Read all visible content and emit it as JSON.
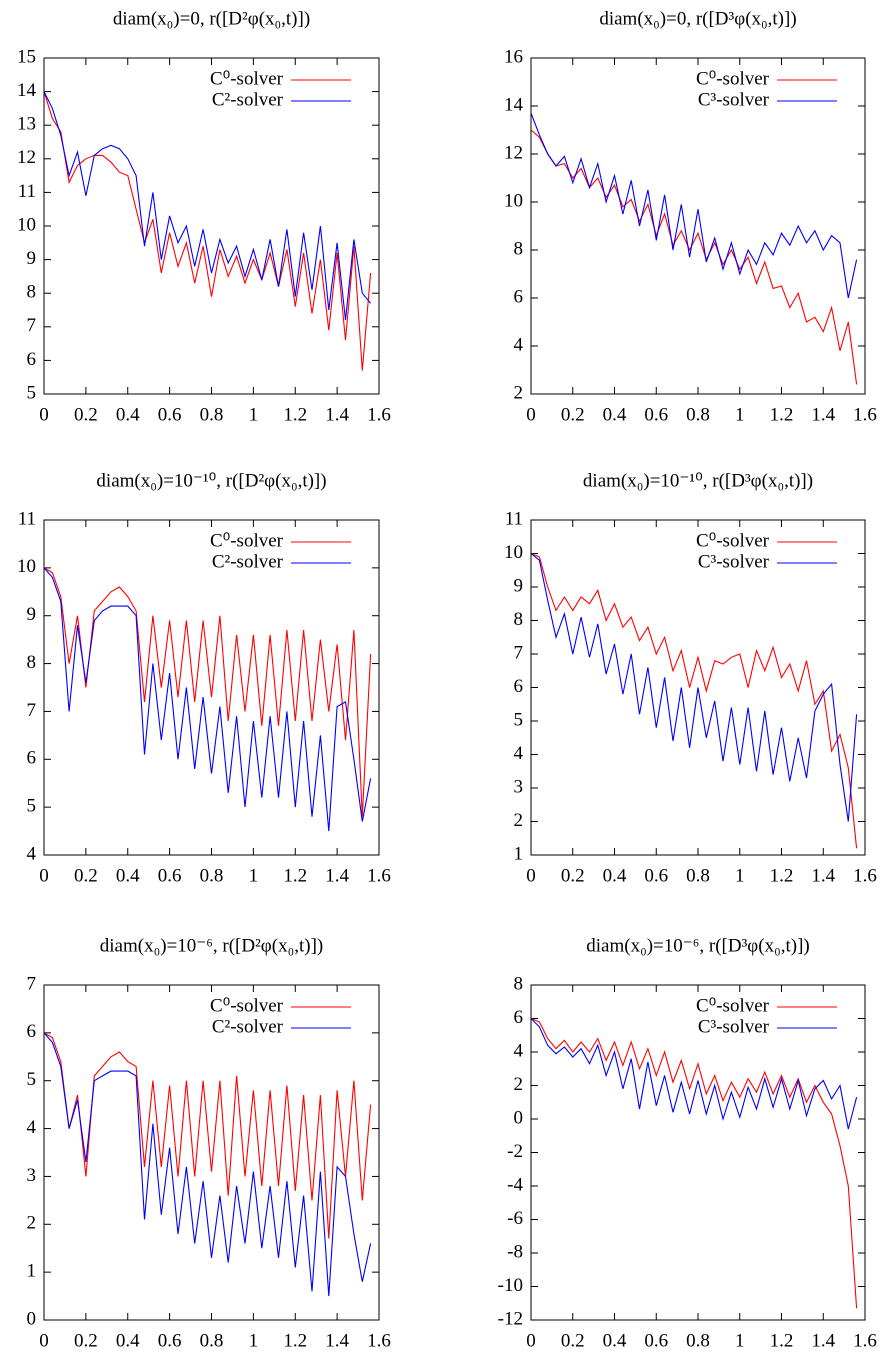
{
  "chart_data": [
    {
      "type": "line",
      "title": "diam(x₀)=0, r([D²φ(x₀,t)])",
      "legend": "top right",
      "x": [
        0,
        0.04,
        0.08,
        0.12,
        0.16,
        0.2,
        0.24,
        0.28,
        0.32,
        0.36,
        0.4,
        0.44,
        0.48,
        0.52,
        0.56,
        0.6,
        0.64,
        0.68,
        0.72,
        0.76,
        0.8,
        0.84,
        0.88,
        0.92,
        0.96,
        1.0,
        1.04,
        1.08,
        1.12,
        1.16,
        1.2,
        1.24,
        1.28,
        1.32,
        1.36,
        1.4,
        1.44,
        1.48,
        1.52,
        1.56
      ],
      "series": [
        {
          "name": "C⁰-solver",
          "color": "#ff0000",
          "values": [
            14,
            13.2,
            12.8,
            11.3,
            11.8,
            12.0,
            12.1,
            12.1,
            11.9,
            11.6,
            11.5,
            10.5,
            9.5,
            10.2,
            8.6,
            9.8,
            8.8,
            9.5,
            8.3,
            9.4,
            7.9,
            9.3,
            8.5,
            9.1,
            8.3,
            9.0,
            8.4,
            9.2,
            8.2,
            9.3,
            7.6,
            9.2,
            7.4,
            9.0,
            6.9,
            9.2,
            6.6,
            9.4,
            5.7,
            8.6
          ]
        },
        {
          "name": "C²-solver",
          "color": "#0000ff",
          "values": [
            14,
            13.5,
            12.7,
            11.5,
            12.2,
            10.9,
            12.1,
            12.3,
            12.4,
            12.3,
            12.0,
            11.5,
            9.4,
            11.0,
            9.0,
            10.3,
            9.5,
            10.0,
            8.8,
            9.9,
            8.6,
            9.6,
            8.9,
            9.4,
            8.5,
            9.3,
            8.4,
            9.6,
            8.2,
            9.9,
            7.9,
            9.8,
            8.1,
            10.0,
            7.5,
            9.5,
            7.2,
            9.6,
            8.0,
            7.7
          ]
        }
      ],
      "xlim": [
        0,
        1.6
      ],
      "xticks": [
        0,
        0.2,
        0.4,
        0.6,
        0.8,
        1,
        1.2,
        1.4,
        1.6
      ],
      "ylim": [
        5,
        15
      ],
      "yticks": [
        5,
        6,
        7,
        8,
        9,
        10,
        11,
        12,
        13,
        14,
        15
      ]
    },
    {
      "type": "line",
      "title": "diam(x₀)=0, r([D³φ(x₀,t)])",
      "legend": "top right",
      "x": [
        0,
        0.04,
        0.08,
        0.12,
        0.16,
        0.2,
        0.24,
        0.28,
        0.32,
        0.36,
        0.4,
        0.44,
        0.48,
        0.52,
        0.56,
        0.6,
        0.64,
        0.68,
        0.72,
        0.76,
        0.8,
        0.84,
        0.88,
        0.92,
        0.96,
        1.0,
        1.04,
        1.08,
        1.12,
        1.16,
        1.2,
        1.24,
        1.28,
        1.32,
        1.36,
        1.4,
        1.44,
        1.48,
        1.52,
        1.56
      ],
      "series": [
        {
          "name": "C⁰-solver",
          "color": "#ff0000",
          "values": [
            13,
            12.7,
            12.0,
            11.5,
            11.6,
            11.0,
            11.4,
            10.6,
            11.0,
            10.2,
            10.7,
            9.8,
            10.1,
            9.2,
            9.9,
            8.6,
            9.5,
            8.2,
            8.8,
            8.0,
            8.7,
            7.6,
            8.3,
            7.4,
            8.0,
            7.2,
            7.7,
            6.6,
            7.5,
            6.4,
            6.5,
            5.6,
            6.2,
            5.0,
            5.2,
            4.6,
            5.6,
            3.8,
            5.0,
            2.4
          ]
        },
        {
          "name": "C³-solver",
          "color": "#0000ff",
          "values": [
            13.7,
            12.8,
            12.0,
            11.5,
            11.9,
            10.8,
            11.8,
            10.6,
            11.6,
            10.0,
            11.1,
            9.5,
            10.9,
            9.0,
            10.5,
            8.4,
            10.3,
            8.0,
            9.9,
            7.7,
            9.7,
            7.5,
            8.5,
            7.2,
            8.3,
            7.0,
            8.0,
            7.4,
            8.3,
            7.8,
            8.7,
            8.2,
            9.0,
            8.3,
            8.8,
            8.0,
            8.6,
            8.3,
            6.0,
            7.6
          ]
        }
      ],
      "xlim": [
        0,
        1.6
      ],
      "xticks": [
        0,
        0.2,
        0.4,
        0.6,
        0.8,
        1,
        1.2,
        1.4,
        1.6
      ],
      "ylim": [
        2,
        16
      ],
      "yticks": [
        2,
        4,
        6,
        8,
        10,
        12,
        14,
        16
      ]
    },
    {
      "type": "line",
      "title": "diam(x₀)=10⁻¹⁰, r([D²φ(x₀,t)])",
      "legend": "top right",
      "x": [
        0,
        0.04,
        0.08,
        0.12,
        0.16,
        0.2,
        0.24,
        0.28,
        0.32,
        0.36,
        0.4,
        0.44,
        0.48,
        0.52,
        0.56,
        0.6,
        0.64,
        0.68,
        0.72,
        0.76,
        0.8,
        0.84,
        0.88,
        0.92,
        0.96,
        1.0,
        1.04,
        1.08,
        1.12,
        1.16,
        1.2,
        1.24,
        1.28,
        1.32,
        1.36,
        1.4,
        1.44,
        1.48,
        1.52,
        1.56
      ],
      "series": [
        {
          "name": "C⁰-solver",
          "color": "#ff0000",
          "values": [
            10,
            9.9,
            9.4,
            8.0,
            9.0,
            7.5,
            9.1,
            9.3,
            9.5,
            9.6,
            9.4,
            9.1,
            7.2,
            9.0,
            7.5,
            8.9,
            7.3,
            8.9,
            7.2,
            8.9,
            7.3,
            9.0,
            6.8,
            8.6,
            7.0,
            8.6,
            6.7,
            8.6,
            6.7,
            8.7,
            6.8,
            8.7,
            6.8,
            8.5,
            7.0,
            8.4,
            6.4,
            8.7,
            4.8,
            8.2
          ]
        },
        {
          "name": "C²-solver",
          "color": "#0000ff",
          "values": [
            10,
            9.8,
            9.3,
            7.0,
            8.8,
            7.6,
            8.9,
            9.1,
            9.2,
            9.2,
            9.2,
            9.0,
            6.1,
            8.0,
            6.4,
            7.8,
            6.0,
            7.5,
            5.8,
            7.3,
            5.7,
            7.1,
            5.3,
            6.9,
            5.0,
            6.8,
            5.2,
            6.9,
            5.2,
            7.0,
            5.0,
            6.8,
            4.8,
            6.5,
            4.5,
            7.1,
            7.2,
            6.0,
            4.7,
            5.6
          ]
        }
      ],
      "xlim": [
        0,
        1.6
      ],
      "xticks": [
        0,
        0.2,
        0.4,
        0.6,
        0.8,
        1,
        1.2,
        1.4,
        1.6
      ],
      "ylim": [
        4,
        11
      ],
      "yticks": [
        4,
        5,
        6,
        7,
        8,
        9,
        10,
        11
      ]
    },
    {
      "type": "line",
      "title": "diam(x₀)=10⁻¹⁰, r([D³φ(x₀,t)])",
      "legend": "top right",
      "x": [
        0,
        0.04,
        0.08,
        0.12,
        0.16,
        0.2,
        0.24,
        0.28,
        0.32,
        0.36,
        0.4,
        0.44,
        0.48,
        0.52,
        0.56,
        0.6,
        0.64,
        0.68,
        0.72,
        0.76,
        0.8,
        0.84,
        0.88,
        0.92,
        0.96,
        1.0,
        1.04,
        1.08,
        1.12,
        1.16,
        1.2,
        1.24,
        1.28,
        1.32,
        1.36,
        1.4,
        1.44,
        1.48,
        1.52,
        1.56
      ],
      "series": [
        {
          "name": "C⁰-solver",
          "color": "#ff0000",
          "values": [
            10,
            9.9,
            9.0,
            8.3,
            8.7,
            8.3,
            8.7,
            8.5,
            8.9,
            8.0,
            8.5,
            7.8,
            8.1,
            7.4,
            7.8,
            7.0,
            7.5,
            6.5,
            7.1,
            6.0,
            6.9,
            5.9,
            6.8,
            6.7,
            6.9,
            7.0,
            6.0,
            7.1,
            6.5,
            7.2,
            6.3,
            6.7,
            5.9,
            6.8,
            5.5,
            5.9,
            4.1,
            4.6,
            3.6,
            1.2
          ]
        },
        {
          "name": "C³-solver",
          "color": "#0000ff",
          "values": [
            10,
            9.8,
            8.6,
            7.5,
            8.2,
            7.0,
            8.1,
            6.9,
            7.9,
            6.4,
            7.3,
            5.8,
            7.0,
            5.2,
            6.6,
            4.8,
            6.3,
            4.4,
            6.0,
            4.2,
            6.0,
            4.5,
            5.6,
            3.8,
            5.4,
            3.7,
            5.4,
            3.5,
            5.3,
            3.4,
            4.8,
            3.2,
            4.5,
            3.3,
            5.3,
            5.8,
            6.1,
            3.7,
            2.0,
            5.2
          ]
        }
      ],
      "xlim": [
        0,
        1.6
      ],
      "xticks": [
        0,
        0.2,
        0.4,
        0.6,
        0.8,
        1,
        1.2,
        1.4,
        1.6
      ],
      "ylim": [
        1,
        11
      ],
      "yticks": [
        1,
        2,
        3,
        4,
        5,
        6,
        7,
        8,
        9,
        10,
        11
      ]
    },
    {
      "type": "line",
      "title": "diam(x₀)=10⁻⁶, r([D²φ(x₀,t)])",
      "legend": "top right",
      "x": [
        0,
        0.04,
        0.08,
        0.12,
        0.16,
        0.2,
        0.24,
        0.28,
        0.32,
        0.36,
        0.4,
        0.44,
        0.48,
        0.52,
        0.56,
        0.6,
        0.64,
        0.68,
        0.72,
        0.76,
        0.8,
        0.84,
        0.88,
        0.92,
        0.96,
        1.0,
        1.04,
        1.08,
        1.12,
        1.16,
        1.2,
        1.24,
        1.28,
        1.32,
        1.36,
        1.4,
        1.44,
        1.48,
        1.52,
        1.56
      ],
      "series": [
        {
          "name": "C⁰-solver",
          "color": "#ff0000",
          "values": [
            6,
            5.9,
            5.4,
            4.0,
            4.7,
            3.0,
            5.1,
            5.3,
            5.5,
            5.6,
            5.4,
            5.3,
            3.2,
            5.0,
            3.2,
            4.9,
            3.0,
            5.0,
            3.0,
            5.0,
            3.1,
            5.0,
            2.6,
            5.1,
            3.0,
            4.8,
            2.8,
            4.8,
            2.8,
            4.9,
            2.7,
            4.7,
            2.5,
            4.7,
            1.7,
            4.8,
            3.0,
            5.0,
            2.5,
            4.5
          ]
        },
        {
          "name": "C²-solver",
          "color": "#0000ff",
          "values": [
            6,
            5.8,
            5.3,
            4.0,
            4.6,
            3.3,
            5.0,
            5.1,
            5.2,
            5.2,
            5.2,
            5.1,
            2.1,
            4.1,
            2.2,
            3.6,
            1.8,
            3.2,
            1.6,
            2.9,
            1.3,
            2.6,
            1.2,
            2.8,
            1.6,
            3.1,
            1.5,
            2.8,
            1.3,
            2.9,
            1.1,
            2.6,
            0.6,
            3.1,
            0.5,
            3.2,
            3.0,
            1.8,
            0.8,
            1.6
          ]
        }
      ],
      "xlim": [
        0,
        1.6
      ],
      "xticks": [
        0,
        0.2,
        0.4,
        0.6,
        0.8,
        1,
        1.2,
        1.4,
        1.6
      ],
      "ylim": [
        0,
        7
      ],
      "yticks": [
        0,
        1,
        2,
        3,
        4,
        5,
        6,
        7
      ]
    },
    {
      "type": "line",
      "title": "diam(x₀)=10⁻⁶, r([D³φ(x₀,t)])",
      "legend": "top right",
      "x": [
        0,
        0.04,
        0.08,
        0.12,
        0.16,
        0.2,
        0.24,
        0.28,
        0.32,
        0.36,
        0.4,
        0.44,
        0.48,
        0.52,
        0.56,
        0.6,
        0.64,
        0.68,
        0.72,
        0.76,
        0.8,
        0.84,
        0.88,
        0.92,
        0.96,
        1.0,
        1.04,
        1.08,
        1.12,
        1.16,
        1.2,
        1.24,
        1.28,
        1.32,
        1.36,
        1.4,
        1.44,
        1.48,
        1.52,
        1.56
      ],
      "series": [
        {
          "name": "C⁰-solver",
          "color": "#ff0000",
          "values": [
            6,
            5.8,
            4.8,
            4.2,
            4.7,
            4.0,
            4.6,
            4.0,
            4.8,
            3.5,
            4.6,
            3.2,
            4.6,
            3.0,
            4.2,
            2.6,
            4.0,
            2.2,
            3.5,
            1.8,
            3.3,
            1.5,
            2.6,
            1.1,
            2.2,
            1.3,
            2.4,
            1.6,
            2.8,
            1.5,
            2.6,
            1.3,
            2.4,
            1.0,
            2.0,
            1.0,
            0.3,
            -1.6,
            -4.0,
            -11.3
          ]
        },
        {
          "name": "C³-solver",
          "color": "#0000ff",
          "values": [
            6,
            5.5,
            4.4,
            3.9,
            4.3,
            3.7,
            4.2,
            3.3,
            4.4,
            2.6,
            4.0,
            1.8,
            3.6,
            0.6,
            3.4,
            0.8,
            2.6,
            0.4,
            2.2,
            0.3,
            2.3,
            0.3,
            2.0,
            0.0,
            1.6,
            0.1,
            1.9,
            0.6,
            2.4,
            0.7,
            2.4,
            0.6,
            2.3,
            0.2,
            1.8,
            2.3,
            1.2,
            2.0,
            -0.6,
            1.3
          ]
        }
      ],
      "xlim": [
        0,
        1.6
      ],
      "xticks": [
        0,
        0.2,
        0.4,
        0.6,
        0.8,
        1,
        1.2,
        1.4,
        1.6
      ],
      "ylim": [
        -12,
        8
      ],
      "yticks": [
        -12,
        -10,
        -8,
        -6,
        -4,
        -2,
        0,
        2,
        4,
        6,
        8
      ]
    }
  ]
}
